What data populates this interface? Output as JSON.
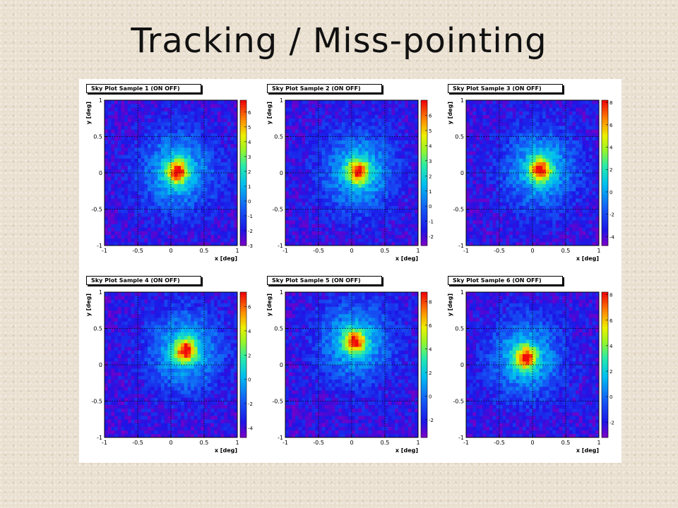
{
  "title": "Tracking / Miss-pointing",
  "chart_data": [
    {
      "type": "heatmap",
      "title": "Sky Plot Sample 1 (ON OFF)",
      "xlabel": "x [deg]",
      "ylabel": "y [deg]",
      "xlim": [
        -1,
        1
      ],
      "ylim": [
        -1,
        1
      ],
      "x_ticks": [
        "-1",
        "-0.5",
        "0",
        "0.5",
        "1"
      ],
      "y_ticks": [
        "-1",
        "-0.5",
        "0",
        "0.5",
        "1"
      ],
      "z_range": [
        -3,
        6.8
      ],
      "z_ticks": [
        "-3",
        "-2",
        "-1",
        "0",
        "1",
        "2",
        "3",
        "4",
        "5",
        "6"
      ],
      "peak": {
        "x": 0.1,
        "y": 0.02
      },
      "grid": true
    },
    {
      "type": "heatmap",
      "title": "Sky Plot Sample 2 (ON OFF)",
      "xlabel": "x [deg]",
      "ylabel": "y [deg]",
      "xlim": [
        -1,
        1
      ],
      "ylim": [
        -1,
        1
      ],
      "x_ticks": [
        "-1",
        "-0.5",
        "0",
        "0.5",
        "1"
      ],
      "y_ticks": [
        "-1",
        "-0.5",
        "0",
        "0.5",
        "1"
      ],
      "z_range": [
        -2.6,
        7
      ],
      "z_ticks": [
        "-2",
        "-1",
        "0",
        "1",
        "2",
        "3",
        "4",
        "5",
        "6"
      ],
      "peak": {
        "x": 0.1,
        "y": 0.02
      },
      "grid": true
    },
    {
      "type": "heatmap",
      "title": "Sky Plot Sample 3 (ON OFF)",
      "xlabel": "x [deg]",
      "ylabel": "y [deg]",
      "xlim": [
        -1,
        1
      ],
      "ylim": [
        -1,
        1
      ],
      "x_ticks": [
        "-1",
        "-0.5",
        "0",
        "0.5",
        "1"
      ],
      "y_ticks": [
        "-1",
        "-0.5",
        "0",
        "0.5",
        "1"
      ],
      "z_range": [
        -4.8,
        8.2
      ],
      "z_ticks": [
        "-4",
        "-2",
        "0",
        "2",
        "4",
        "6",
        "8"
      ],
      "peak": {
        "x": 0.12,
        "y": 0.05
      },
      "grid": true
    },
    {
      "type": "heatmap",
      "title": "Sky Plot Sample 4 (ON OFF)",
      "xlabel": "x [deg]",
      "ylabel": "y [deg]",
      "xlim": [
        -1,
        1
      ],
      "ylim": [
        -1,
        1
      ],
      "x_ticks": [
        "-1",
        "-0.5",
        "0",
        "0.5",
        "1"
      ],
      "y_ticks": [
        "-1",
        "-0.5",
        "0",
        "0.5",
        "1"
      ],
      "z_range": [
        -4.8,
        7.2
      ],
      "z_ticks": [
        "-4",
        "-2",
        "0",
        "2",
        "4",
        "6"
      ],
      "peak": {
        "x": 0.22,
        "y": 0.2
      },
      "grid": true
    },
    {
      "type": "heatmap",
      "title": "Sky Plot Sample 5 (ON OFF)",
      "xlabel": "x [deg]",
      "ylabel": "y [deg]",
      "xlim": [
        -1,
        1
      ],
      "ylim": [
        -1,
        1
      ],
      "x_ticks": [
        "-1",
        "-0.5",
        "0",
        "0.5",
        "1"
      ],
      "y_ticks": [
        "-1",
        "-0.5",
        "0",
        "0.5",
        "1"
      ],
      "z_range": [
        -3.5,
        8.8
      ],
      "z_ticks": [
        "-2",
        "0",
        "2",
        "4",
        "6",
        "8"
      ],
      "peak": {
        "x": 0.05,
        "y": 0.32
      },
      "grid": true
    },
    {
      "type": "heatmap",
      "title": "Sky Plot Sample 6 (ON OFF)",
      "xlabel": "x [deg]",
      "ylabel": "y [deg]",
      "xlim": [
        -1,
        1
      ],
      "ylim": [
        -1,
        1
      ],
      "x_ticks": [
        "-1",
        "-0.5",
        "0",
        "0.5",
        "1"
      ],
      "y_ticks": [
        "-1",
        "-0.5",
        "0",
        "0.5",
        "1"
      ],
      "z_range": [
        -3.2,
        8.2
      ],
      "z_ticks": [
        "-2",
        "0",
        "2",
        "4",
        "6",
        "8"
      ],
      "peak": {
        "x": -0.1,
        "y": 0.1
      },
      "grid": true
    }
  ]
}
